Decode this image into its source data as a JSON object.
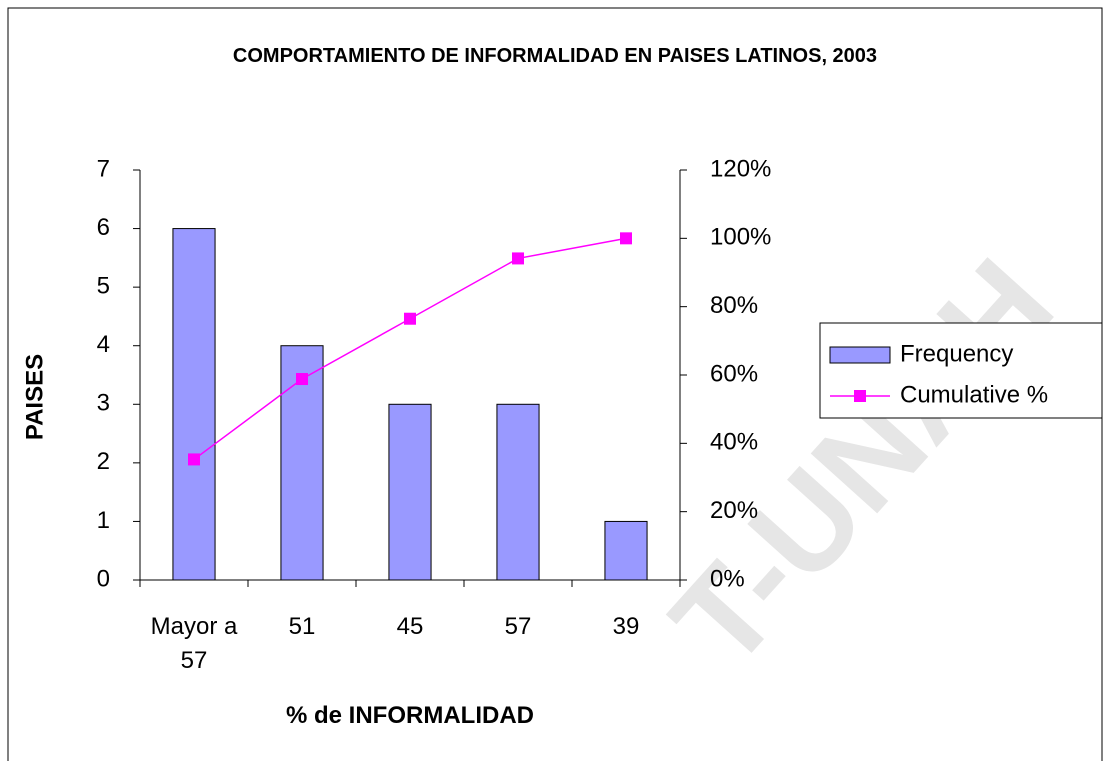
{
  "chart_data": {
    "type": "bar_line",
    "title": "COMPORTAMIENTO DE INFORMALIDAD EN PAISES LATINOS, 2003",
    "x_label": "% de INFORMALIDAD",
    "y_label": "PAISES",
    "categories": [
      "Mayor a 57",
      "51",
      "45",
      "57",
      "39"
    ],
    "series": [
      {
        "name": "Frequency",
        "type": "bar",
        "color": "#9999ff",
        "values": [
          6,
          4,
          3,
          3,
          1
        ]
      },
      {
        "name": "Cumulative %",
        "type": "line",
        "color": "#ff00ff",
        "axis": "y2",
        "values": [
          35.29,
          58.82,
          76.47,
          94.12,
          100
        ]
      }
    ],
    "ylim": [
      0,
      7
    ],
    "yticks": [
      0,
      1,
      2,
      3,
      4,
      5,
      6,
      7
    ],
    "y2lim": [
      0,
      120
    ],
    "y2ticks": [
      {
        "value": 0,
        "label": "0%"
      },
      {
        "value": 20,
        "label": "20%"
      },
      {
        "value": 40,
        "label": "40%"
      },
      {
        "value": 60,
        "label": "60%"
      },
      {
        "value": 80,
        "label": "80%"
      },
      {
        "value": 100,
        "label": "100%"
      },
      {
        "value": 120,
        "label": "120%"
      }
    ],
    "legend": "right",
    "watermark": "T-UNAH"
  }
}
